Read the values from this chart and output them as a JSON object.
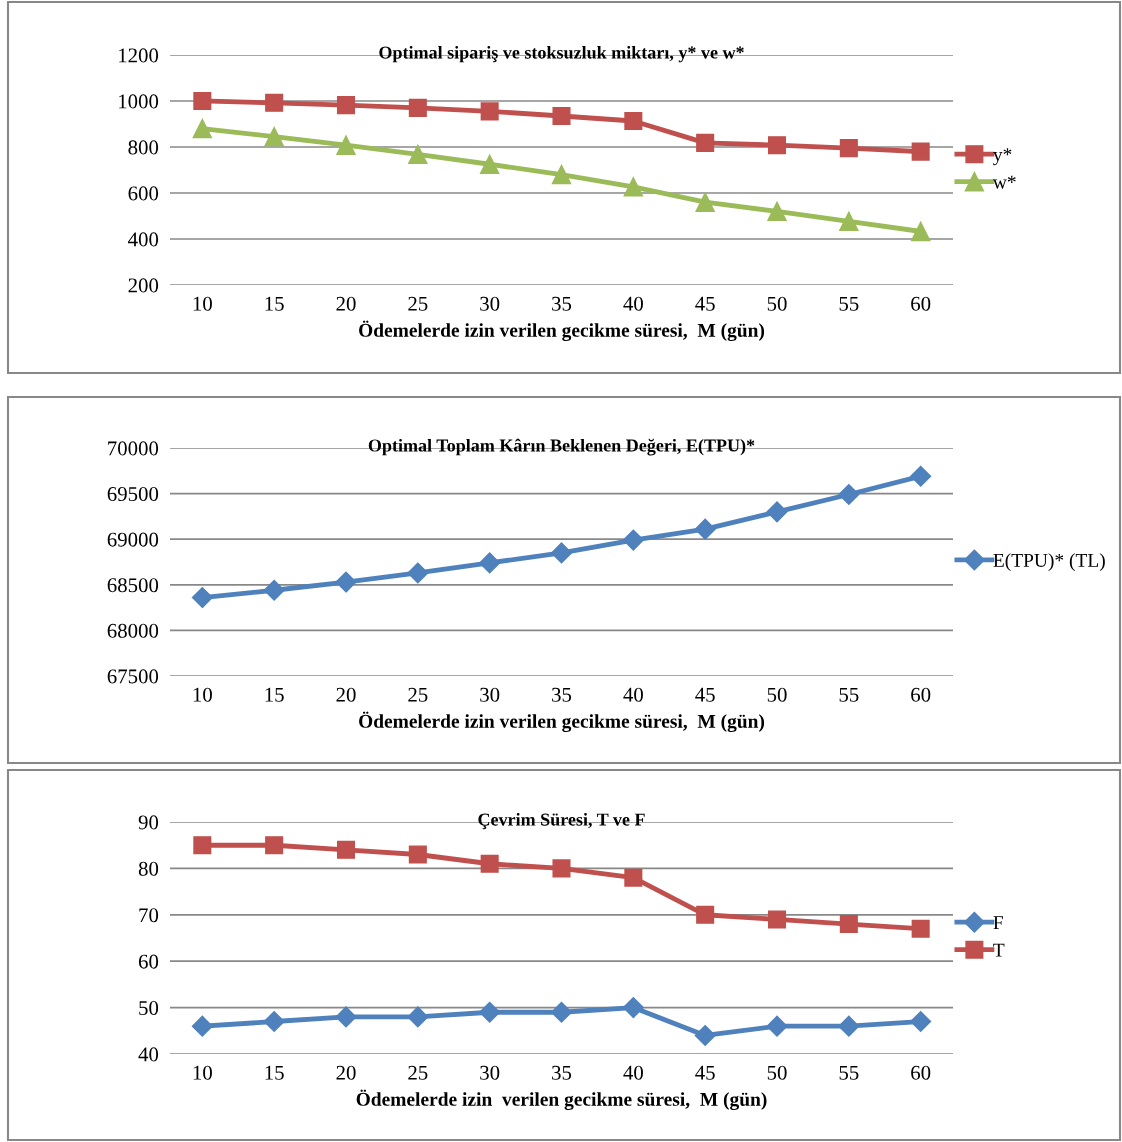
{
  "chart_data": [
    {
      "type": "line",
      "title": "Optimal sipariş ve stoksuzluk miktarı, y* ve w*",
      "xlabel": "Ödemelerde izin verilen gecikme süresi,  M (gün)",
      "categories": [
        "10",
        "15",
        "20",
        "25",
        "30",
        "35",
        "40",
        "45",
        "50",
        "55",
        "60"
      ],
      "ylim": [
        200,
        1200
      ],
      "yticks": [
        200,
        400,
        600,
        800,
        1000,
        1200
      ],
      "grid": "y",
      "legend": "right",
      "series": [
        {
          "name": "y*",
          "color": "#c0504d",
          "marker": "square",
          "values": [
            1000,
            992,
            982,
            970,
            955,
            935,
            913,
            818,
            808,
            795,
            780
          ]
        },
        {
          "name": "w*",
          "color": "#9bbb59",
          "marker": "triangle",
          "values": [
            880,
            845,
            808,
            768,
            725,
            680,
            627,
            560,
            520,
            477,
            433
          ]
        }
      ]
    },
    {
      "type": "line",
      "title": "Optimal Toplam Kârın Beklenen Değeri, E(TPU)*",
      "xlabel": "Ödemelerde izin verilen gecikme süresi,  M (gün)",
      "categories": [
        "10",
        "15",
        "20",
        "25",
        "30",
        "35",
        "40",
        "45",
        "50",
        "55",
        "60"
      ],
      "ylim": [
        67500,
        70000
      ],
      "yticks": [
        67500,
        68000,
        68500,
        69000,
        69500,
        70000
      ],
      "grid": "y",
      "legend": "right",
      "series": [
        {
          "name": "E(TPU)* (TL)",
          "color": "#4f81bd",
          "marker": "diamond",
          "values": [
            68360,
            68440,
            68530,
            68630,
            68740,
            68850,
            68990,
            69110,
            69300,
            69490,
            69690
          ]
        }
      ]
    },
    {
      "type": "line",
      "title": "Çevrim Süresi, T ve F",
      "xlabel": "Ödemelerde izin  verilen gecikme süresi,  M (gün)",
      "categories": [
        "10",
        "15",
        "20",
        "25",
        "30",
        "35",
        "40",
        "45",
        "50",
        "55",
        "60"
      ],
      "ylim": [
        40,
        90
      ],
      "yticks": [
        40,
        50,
        60,
        70,
        80,
        90
      ],
      "grid": "y",
      "legend": "right",
      "series": [
        {
          "name": "F",
          "color": "#4f81bd",
          "marker": "diamond",
          "values": [
            46,
            47,
            48,
            48,
            49,
            49,
            50,
            44,
            46,
            46,
            47
          ]
        },
        {
          "name": "T",
          "color": "#c0504d",
          "marker": "square",
          "values": [
            85,
            85,
            84,
            83,
            81,
            80,
            78,
            70,
            69,
            68,
            67
          ]
        }
      ]
    }
  ]
}
